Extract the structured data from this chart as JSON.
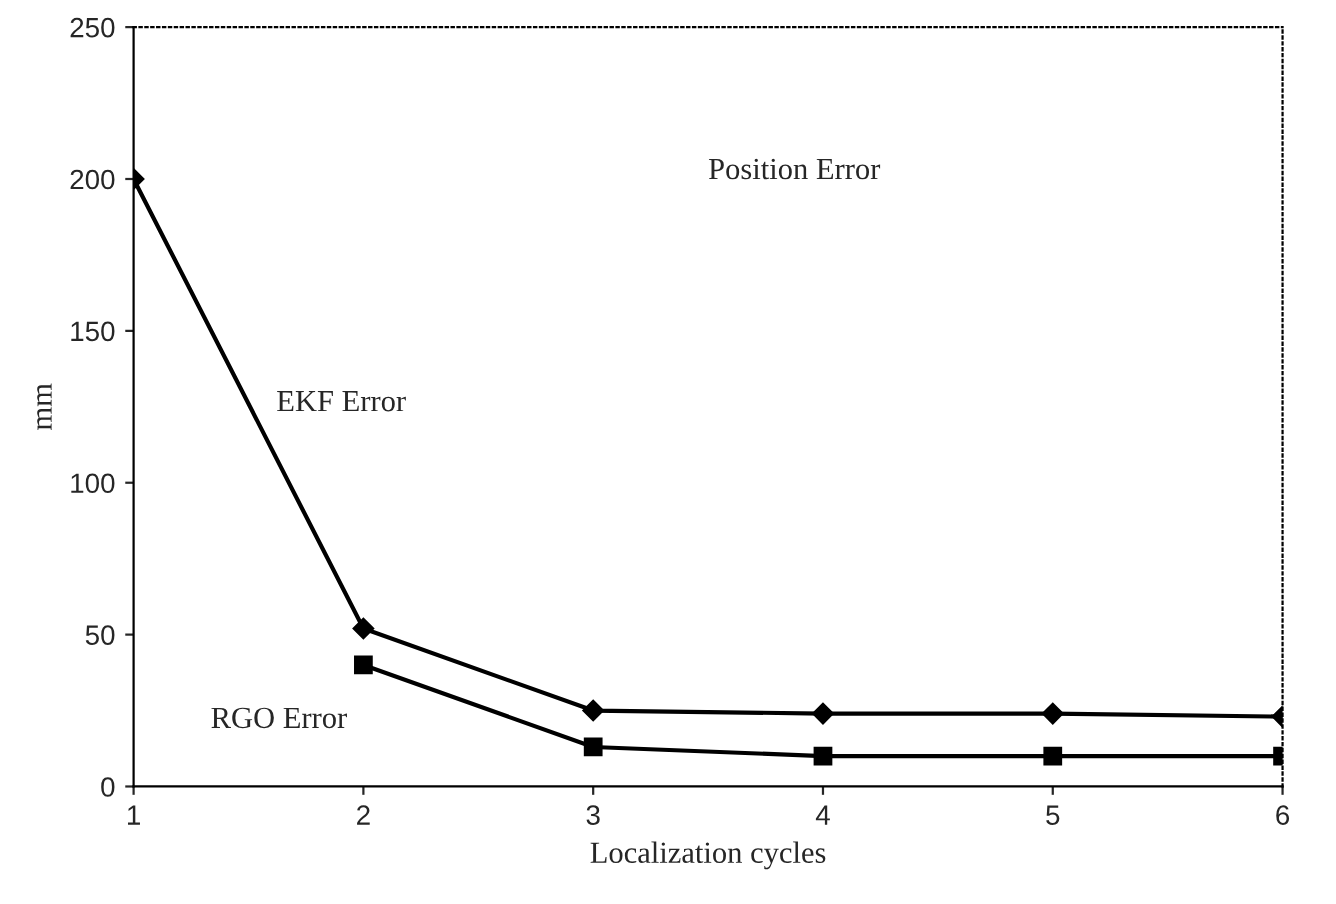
{
  "chart_data": {
    "type": "line",
    "title": "Position Error",
    "xlabel": "Localization cycles",
    "ylabel": "mm",
    "x": [
      1,
      2,
      3,
      4,
      5,
      6
    ],
    "series": [
      {
        "name": "EKF Error",
        "color": "#000000",
        "marker": "diamond",
        "values": [
          200,
          52,
          25,
          24,
          24,
          23
        ]
      },
      {
        "name": "RGO Error",
        "color": "#000000",
        "marker": "square",
        "values": [
          null,
          40,
          13,
          10,
          10,
          10
        ]
      }
    ],
    "xlim": [
      1,
      6
    ],
    "xticks": [
      1,
      2,
      3,
      4,
      5,
      6
    ],
    "ylim": [
      0,
      250
    ],
    "yticks": [
      0,
      50,
      100,
      150,
      200,
      250
    ],
    "grid": false,
    "legend": false,
    "line_style": "solid"
  }
}
